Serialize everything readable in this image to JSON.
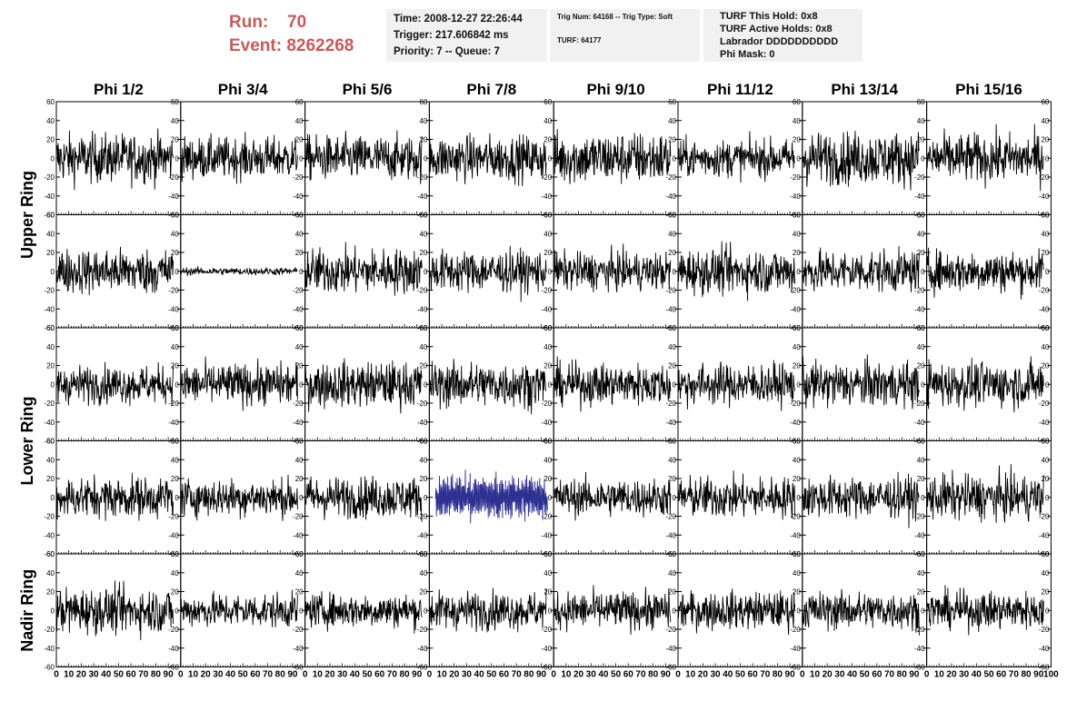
{
  "header": {
    "run_label": "Run:",
    "run_value": "70",
    "event_label": "Event:",
    "event_value": "8262268"
  },
  "info_time": {
    "time": "Time: 2008-12-27 22:26:44",
    "trigger": "Trigger: 217.606842 ms",
    "priority": "Priority: 7 -- Queue: 7"
  },
  "info_trig": {
    "trig": "Trig Num: 64168 -- Trig Type: Soft",
    "turf": "TURF: 64177"
  },
  "info_turf": {
    "hold": "TURF This Hold: 0x8",
    "active": "TURF Active Holds: 0x8",
    "labrador": "Labrador DDDDDDDDDD",
    "phimask": "Phi Mask: 0"
  },
  "columns": [
    "Phi 1/2",
    "Phi 3/4",
    "Phi 5/6",
    "Phi 7/8",
    "Phi 9/10",
    "Phi 11/12",
    "Phi 13/14",
    "Phi 15/16"
  ],
  "ring_labels": [
    {
      "text": "Upper Ring",
      "rows": [
        0,
        1
      ]
    },
    {
      "text": "Lower Ring",
      "rows": [
        2,
        3
      ]
    },
    {
      "text": "Nadir Ring",
      "rows": [
        4,
        4
      ]
    }
  ],
  "colors": {
    "trace": "#000000",
    "highlight_trace": "#2e3192",
    "axis": "#000000",
    "run_text": "#c85a5a",
    "box_bg": "#f1f1f1"
  },
  "chart_data": {
    "type": "line",
    "panel_rows": 5,
    "panel_cols": 8,
    "xlim": [
      0,
      100
    ],
    "ylim": [
      -60,
      60
    ],
    "x_ticks": [
      0,
      10,
      20,
      30,
      40,
      50,
      60,
      70,
      80,
      90,
      100
    ],
    "x_tick_labels_last_panel": [
      "0",
      "10",
      "20",
      "30",
      "40",
      "50",
      "60",
      "70",
      "80",
      "90",
      "100"
    ],
    "x_tick_labels": [
      "0",
      "10",
      "20",
      "30",
      "40",
      "50",
      "60",
      "70",
      "80",
      "90"
    ],
    "y_ticks": [
      -60,
      -40,
      -20,
      0,
      20,
      40,
      60
    ],
    "y_tick_labels": [
      "-60",
      "-40",
      "-20",
      "0",
      "20",
      "40",
      "60"
    ],
    "trace_x_range": [
      0,
      94
    ],
    "trace_samples": 260,
    "panel_amplitudes": [
      [
        13,
        11,
        12,
        12,
        14,
        10,
        14,
        13
      ],
      [
        12,
        2,
        12,
        11,
        10,
        12,
        11,
        11
      ],
      [
        10,
        11,
        12,
        12,
        11,
        11,
        12,
        12
      ],
      [
        11,
        10,
        11,
        13,
        10,
        11,
        11,
        12
      ],
      [
        12,
        9,
        9,
        10,
        10,
        10,
        10,
        10
      ]
    ],
    "highlighted_panel": {
      "row": 3,
      "col": 3,
      "x_range": [
        5,
        95
      ]
    }
  }
}
